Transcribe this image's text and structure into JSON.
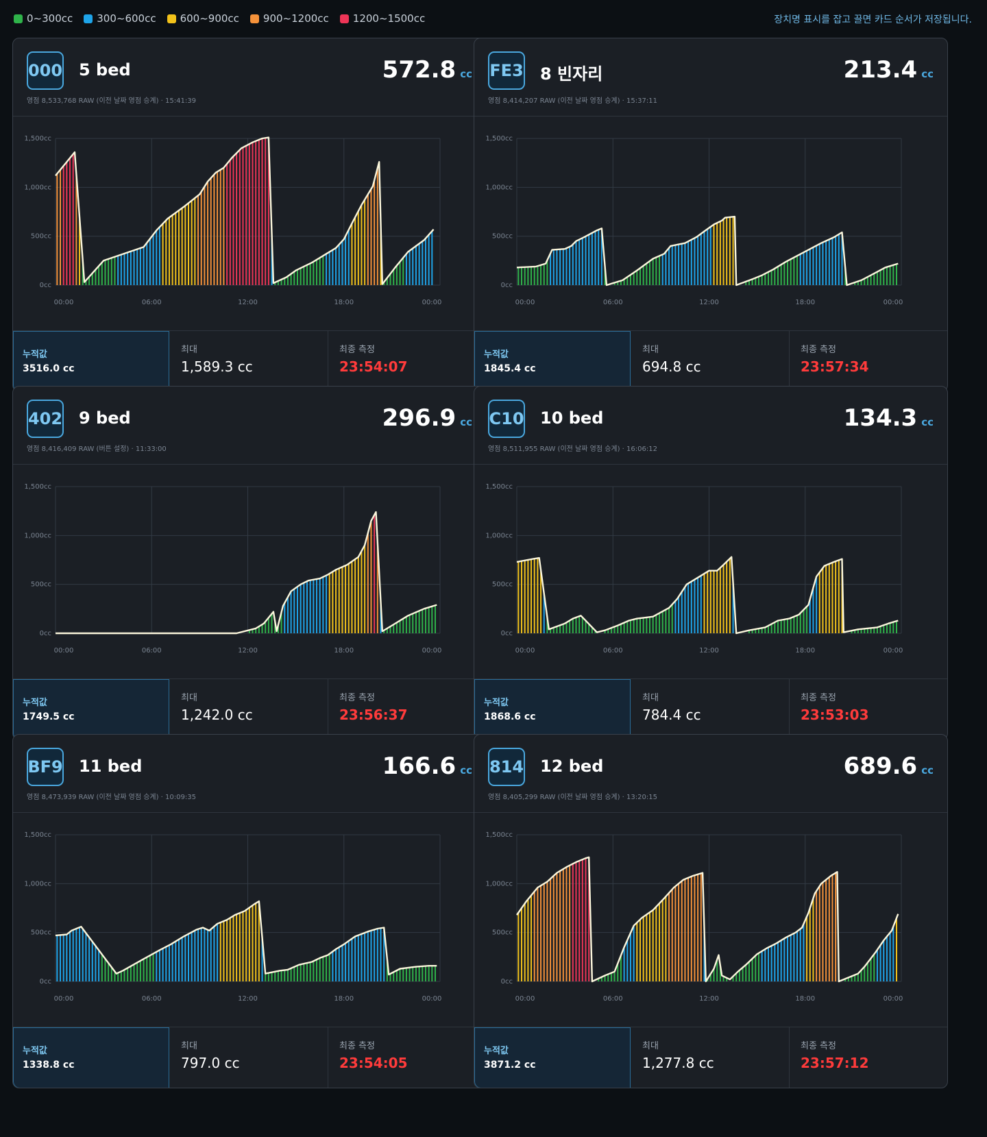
{
  "legend": [
    {
      "label": "0~300cc",
      "color": "#2fb34a"
    },
    {
      "label": "300~600cc",
      "color": "#1ea4e9"
    },
    {
      "label": "600~900cc",
      "color": "#f2c21a"
    },
    {
      "label": "900~1200cc",
      "color": "#f5923a"
    },
    {
      "label": "1200~1500cc",
      "color": "#ee3557"
    }
  ],
  "hint": "장치명 표시를 잡고 끌면 카드 순서가 저장됩니다.",
  "labels": {
    "total": "누적값",
    "max": "최대",
    "last": "최종 측정",
    "unit": "cc"
  },
  "axis": {
    "y_ticks": [
      "0cc",
      "500cc",
      "1,000cc",
      "1,500cc"
    ],
    "x_ticks": [
      "00:00",
      "06:00",
      "12:00",
      "18:00",
      "00:00"
    ]
  },
  "cards": [
    {
      "id": "000",
      "name": "5 bed",
      "value": "572.8",
      "meta": "영점 8,533,768 RAW (이전 날짜 영점 승계) · 15:41:39",
      "total": "3516.0 cc",
      "max": "1,589.3 cc",
      "last": "23:54:07"
    },
    {
      "id": "FE3",
      "name": "8 빈자리",
      "value": "213.4",
      "meta": "영점 8,414,207 RAW (이전 날짜 영점 승계) · 15:37:11",
      "total": "1845.4 cc",
      "max": "694.8 cc",
      "last": "23:57:34"
    },
    {
      "id": "402",
      "name": "9 bed",
      "value": "296.9",
      "meta": "영점 8,416,409 RAW (버튼 설정) · 11:33:00",
      "total": "1749.5 cc",
      "max": "1,242.0 cc",
      "last": "23:56:37"
    },
    {
      "id": "C10",
      "name": "10 bed",
      "value": "134.3",
      "meta": "영점 8,511,955 RAW (이전 날짜 영점 승계) · 16:06:12",
      "total": "1868.6 cc",
      "max": "784.4 cc",
      "last": "23:53:03"
    },
    {
      "id": "BF9",
      "name": "11 bed",
      "value": "166.6",
      "meta": "영점 8,473,939 RAW (이전 날짜 영점 승계) · 10:09:35",
      "total": "1338.8 cc",
      "max": "797.0 cc",
      "last": "23:54:05"
    },
    {
      "id": "814",
      "name": "12 bed",
      "value": "689.6",
      "meta": "영점 8,405,299 RAW (이전 날짜 영점 승계) · 13:20:15",
      "total": "3871.2 cc",
      "max": "1,277.8 cc",
      "last": "23:57:12"
    }
  ],
  "chart_data": [
    {
      "type": "area",
      "device": "000",
      "x_unit": "hour",
      "y_unit": "cc",
      "ylim": [
        0,
        1500
      ],
      "xlim": [
        0,
        24
      ],
      "points": [
        [
          0,
          1120
        ],
        [
          0.7,
          1260
        ],
        [
          1.2,
          1360
        ],
        [
          1.8,
          30
        ],
        [
          3,
          250
        ],
        [
          5.5,
          390
        ],
        [
          6.3,
          560
        ],
        [
          7,
          680
        ],
        [
          8,
          800
        ],
        [
          9,
          930
        ],
        [
          9.5,
          1060
        ],
        [
          10,
          1150
        ],
        [
          10.5,
          1200
        ],
        [
          11,
          1300
        ],
        [
          11.6,
          1400
        ],
        [
          12.3,
          1460
        ],
        [
          12.9,
          1500
        ],
        [
          13.3,
          1510
        ],
        [
          13.6,
          20
        ],
        [
          14.4,
          80
        ],
        [
          15,
          150
        ],
        [
          16,
          230
        ],
        [
          16.8,
          310
        ],
        [
          17.5,
          380
        ],
        [
          18,
          470
        ],
        [
          18.5,
          630
        ],
        [
          19.1,
          820
        ],
        [
          19.8,
          1010
        ],
        [
          20.2,
          1260
        ],
        [
          20.4,
          10
        ],
        [
          21.2,
          180
        ],
        [
          22,
          340
        ],
        [
          23,
          460
        ],
        [
          23.6,
          570
        ]
      ]
    },
    {
      "type": "area",
      "device": "FE3",
      "x_unit": "hour",
      "y_unit": "cc",
      "ylim": [
        0,
        1500
      ],
      "xlim": [
        0,
        24
      ],
      "points": [
        [
          0,
          180
        ],
        [
          1.2,
          190
        ],
        [
          1.8,
          220
        ],
        [
          2.2,
          360
        ],
        [
          3,
          370
        ],
        [
          3.4,
          400
        ],
        [
          3.7,
          450
        ],
        [
          4.2,
          490
        ],
        [
          5,
          560
        ],
        [
          5.3,
          580
        ],
        [
          5.6,
          0
        ],
        [
          6.6,
          50
        ],
        [
          7.5,
          150
        ],
        [
          8.5,
          270
        ],
        [
          9.2,
          320
        ],
        [
          9.6,
          400
        ],
        [
          10.5,
          430
        ],
        [
          11.2,
          490
        ],
        [
          11.7,
          550
        ],
        [
          12.3,
          620
        ],
        [
          12.8,
          660
        ],
        [
          13,
          690
        ],
        [
          13.6,
          700
        ],
        [
          13.7,
          0
        ],
        [
          14.7,
          60
        ],
        [
          15.3,
          100
        ],
        [
          16,
          160
        ],
        [
          16.8,
          240
        ],
        [
          17.5,
          300
        ],
        [
          18.2,
          360
        ],
        [
          19,
          430
        ],
        [
          19.8,
          490
        ],
        [
          20.3,
          540
        ],
        [
          20.6,
          0
        ],
        [
          21.5,
          50
        ],
        [
          22.2,
          110
        ],
        [
          23,
          180
        ],
        [
          23.8,
          220
        ]
      ]
    },
    {
      "type": "area",
      "device": "402",
      "x_unit": "hour",
      "y_unit": "cc",
      "ylim": [
        0,
        1500
      ],
      "xlim": [
        0,
        24
      ],
      "points": [
        [
          0,
          0
        ],
        [
          11.3,
          0
        ],
        [
          12.5,
          50
        ],
        [
          13,
          100
        ],
        [
          13.6,
          220
        ],
        [
          13.8,
          20
        ],
        [
          14.2,
          280
        ],
        [
          14.7,
          430
        ],
        [
          15.3,
          500
        ],
        [
          15.8,
          540
        ],
        [
          16.5,
          560
        ],
        [
          17,
          600
        ],
        [
          17.5,
          650
        ],
        [
          18.2,
          700
        ],
        [
          18.9,
          780
        ],
        [
          19.3,
          900
        ],
        [
          19.7,
          1150
        ],
        [
          20,
          1240
        ],
        [
          20.4,
          20
        ],
        [
          21,
          80
        ],
        [
          22,
          180
        ],
        [
          23,
          250
        ],
        [
          23.8,
          290
        ]
      ]
    },
    {
      "type": "area",
      "device": "C10",
      "x_unit": "hour",
      "y_unit": "cc",
      "ylim": [
        0,
        1500
      ],
      "xlim": [
        0,
        24
      ],
      "points": [
        [
          0,
          730
        ],
        [
          1,
          760
        ],
        [
          1.4,
          770
        ],
        [
          2,
          40
        ],
        [
          3,
          100
        ],
        [
          3.5,
          150
        ],
        [
          4,
          180
        ],
        [
          5,
          10
        ],
        [
          5.5,
          30
        ],
        [
          6.3,
          80
        ],
        [
          7,
          130
        ],
        [
          7.5,
          150
        ],
        [
          8,
          160
        ],
        [
          8.5,
          170
        ],
        [
          9.5,
          260
        ],
        [
          10,
          350
        ],
        [
          10.6,
          500
        ],
        [
          11.4,
          580
        ],
        [
          12,
          640
        ],
        [
          12.5,
          640
        ],
        [
          12.9,
          700
        ],
        [
          13.4,
          780
        ],
        [
          13.7,
          0
        ],
        [
          14.5,
          30
        ],
        [
          15.5,
          60
        ],
        [
          16.3,
          130
        ],
        [
          17,
          150
        ],
        [
          17.6,
          190
        ],
        [
          18.2,
          290
        ],
        [
          18.7,
          580
        ],
        [
          19.2,
          690
        ],
        [
          19.8,
          730
        ],
        [
          20.3,
          760
        ],
        [
          20.4,
          10
        ],
        [
          21.3,
          40
        ],
        [
          22.5,
          60
        ],
        [
          23.2,
          100
        ],
        [
          23.8,
          130
        ]
      ]
    },
    {
      "type": "area",
      "device": "BF9",
      "x_unit": "hour",
      "y_unit": "cc",
      "ylim": [
        0,
        1500
      ],
      "xlim": [
        0,
        24
      ],
      "points": [
        [
          0,
          470
        ],
        [
          0.7,
          480
        ],
        [
          1,
          520
        ],
        [
          1.6,
          560
        ],
        [
          3.8,
          80
        ],
        [
          4.2,
          110
        ],
        [
          5.5,
          230
        ],
        [
          6.5,
          320
        ],
        [
          7.2,
          380
        ],
        [
          8,
          460
        ],
        [
          8.8,
          530
        ],
        [
          9.2,
          550
        ],
        [
          9.6,
          520
        ],
        [
          10.1,
          590
        ],
        [
          10.7,
          630
        ],
        [
          11.2,
          680
        ],
        [
          11.8,
          720
        ],
        [
          12.4,
          790
        ],
        [
          12.7,
          820
        ],
        [
          13.1,
          80
        ],
        [
          14,
          110
        ],
        [
          14.5,
          120
        ],
        [
          15.2,
          170
        ],
        [
          16,
          200
        ],
        [
          16.5,
          240
        ],
        [
          17,
          270
        ],
        [
          17.5,
          330
        ],
        [
          18,
          380
        ],
        [
          18.7,
          460
        ],
        [
          19.5,
          510
        ],
        [
          20.1,
          540
        ],
        [
          20.5,
          550
        ],
        [
          20.8,
          70
        ],
        [
          21.5,
          130
        ],
        [
          22.5,
          150
        ],
        [
          23.3,
          160
        ],
        [
          23.8,
          160
        ]
      ]
    },
    {
      "type": "area",
      "device": "814",
      "x_unit": "hour",
      "y_unit": "cc",
      "ylim": [
        0,
        1500
      ],
      "xlim": [
        0,
        24
      ],
      "points": [
        [
          0,
          680
        ],
        [
          0.6,
          820
        ],
        [
          1.3,
          960
        ],
        [
          1.9,
          1020
        ],
        [
          2.5,
          1110
        ],
        [
          3.1,
          1170
        ],
        [
          3.7,
          1220
        ],
        [
          4.3,
          1260
        ],
        [
          4.5,
          1270
        ],
        [
          4.7,
          0
        ],
        [
          5.5,
          60
        ],
        [
          6.1,
          100
        ],
        [
          6.7,
          350
        ],
        [
          7.3,
          570
        ],
        [
          7.8,
          650
        ],
        [
          8.5,
          730
        ],
        [
          9.2,
          850
        ],
        [
          9.8,
          960
        ],
        [
          10.4,
          1040
        ],
        [
          11,
          1080
        ],
        [
          11.6,
          1110
        ],
        [
          11.8,
          0
        ],
        [
          12.3,
          130
        ],
        [
          12.6,
          270
        ],
        [
          12.8,
          60
        ],
        [
          13.3,
          20
        ],
        [
          13.8,
          100
        ],
        [
          14.3,
          170
        ],
        [
          15,
          280
        ],
        [
          15.6,
          340
        ],
        [
          16.2,
          390
        ],
        [
          16.8,
          450
        ],
        [
          17.4,
          500
        ],
        [
          17.8,
          550
        ],
        [
          18.2,
          700
        ],
        [
          18.6,
          900
        ],
        [
          19,
          1000
        ],
        [
          19.6,
          1080
        ],
        [
          20,
          1120
        ],
        [
          20.1,
          0
        ],
        [
          21.3,
          80
        ],
        [
          21.7,
          150
        ],
        [
          22.4,
          300
        ],
        [
          22.9,
          420
        ],
        [
          23.4,
          520
        ],
        [
          23.8,
          690
        ]
      ]
    }
  ]
}
